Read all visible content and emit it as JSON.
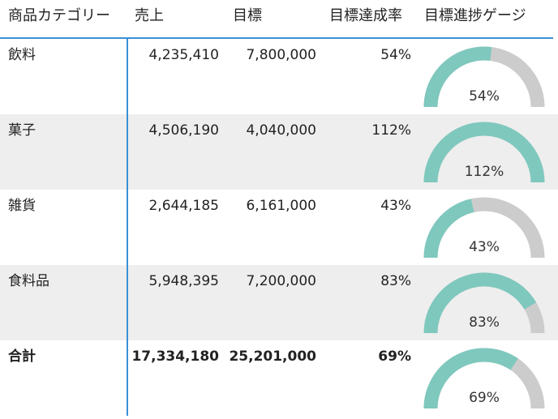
{
  "columns": {
    "category": "商品カテゴリー",
    "sales": "売上",
    "target": "目標",
    "rate": "目標達成率",
    "gauge": "目標進捗ゲージ"
  },
  "rows": [
    {
      "category": "飲料",
      "sales": "4,235,410",
      "target": "7,800,000",
      "rate": "54%",
      "gauge_value": 0.54,
      "gauge_label": "54%"
    },
    {
      "category": "菓子",
      "sales": "4,506,190",
      "target": "4,040,000",
      "rate": "112%",
      "gauge_value": 1.12,
      "gauge_label": "112%"
    },
    {
      "category": "雑貨",
      "sales": "2,644,185",
      "target": "6,161,000",
      "rate": "43%",
      "gauge_value": 0.43,
      "gauge_label": "43%"
    },
    {
      "category": "食料品",
      "sales": "5,948,395",
      "target": "7,200,000",
      "rate": "83%",
      "gauge_value": 0.83,
      "gauge_label": "83%"
    }
  ],
  "total": {
    "category": "合計",
    "sales": "17,334,180",
    "target": "25,201,000",
    "rate": "69%",
    "gauge_value": 0.69,
    "gauge_label": "69%"
  },
  "colors": {
    "gauge_fill": "#7fc8be",
    "gauge_track": "#cccccc",
    "row_alt": "#eeeeee",
    "grid_line": "#3a8fd6"
  }
}
